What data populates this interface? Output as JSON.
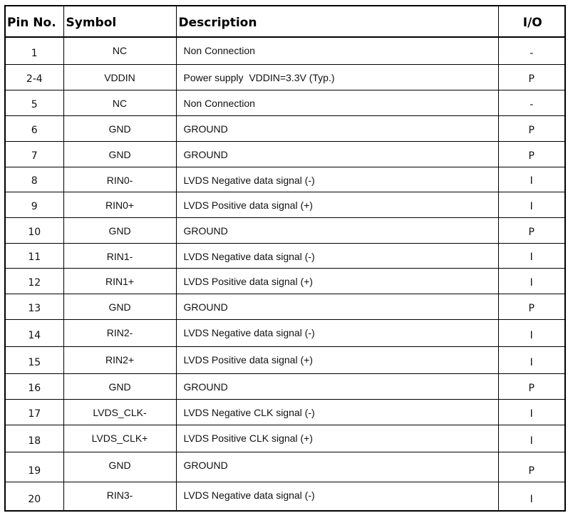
{
  "table": {
    "header": [
      "Pin No.",
      "Symbol",
      "Description",
      "I/O"
    ],
    "rows": [
      [
        "1",
        "NC",
        "Non Connection",
        "-"
      ],
      [
        "2-4",
        "VDDIN",
        "Power supply  VDDIN=3.3V (Typ.)",
        "P"
      ],
      [
        "5",
        "NC",
        "Non Connection",
        "-"
      ],
      [
        "6",
        "GND",
        "GROUND",
        "P"
      ],
      [
        "7",
        "GND",
        "GROUND",
        "P"
      ],
      [
        "8",
        "RIN0-",
        "LVDS Negative data signal (-)",
        "I"
      ],
      [
        "9",
        "RIN0+",
        "LVDS Positive data signal (+)",
        "I"
      ],
      [
        "10",
        "GND",
        "GROUND",
        "P"
      ],
      [
        "11",
        "RIN1-",
        "LVDS Negative data signal (-)",
        "I"
      ],
      [
        "12",
        "RIN1+",
        "LVDS Positive data signal (+)",
        "I"
      ],
      [
        "13",
        "GND",
        "GROUND",
        "P"
      ],
      [
        "14",
        "RIN2-",
        "LVDS Negative data signal (-)",
        "I"
      ],
      [
        "15",
        "RIN2+",
        "LVDS Positive data signal (+)",
        "I"
      ],
      [
        "16",
        "GND",
        "GROUND",
        "P"
      ],
      [
        "17",
        "LVDS_CLK-",
        "LVDS Negative CLK signal (-)",
        "I"
      ],
      [
        "18",
        "LVDS_CLK+",
        "LVDS Positive CLK signal (+)",
        "I"
      ],
      [
        "19",
        "GND",
        "GROUND",
        "P"
      ],
      [
        "20",
        "RIN3-",
        "LVDS Negative data signal (-)",
        "I"
      ]
    ]
  }
}
